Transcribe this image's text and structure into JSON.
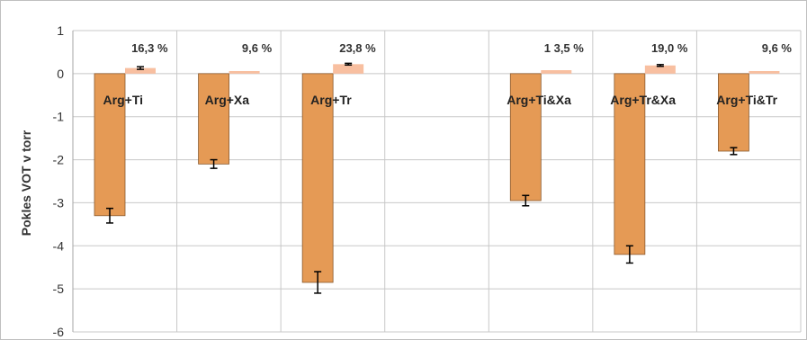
{
  "chart_data": {
    "type": "bar",
    "title": "",
    "xlabel": "",
    "ylabel": "Pokles  VOT v torr",
    "ylim": [
      -6,
      1
    ],
    "yticks": [
      1,
      0,
      -1,
      -2,
      -3,
      -4,
      -5,
      -6
    ],
    "grid": true,
    "categories": [
      "Arg+Ti",
      "Arg+Xa",
      "Arg+Tr",
      "",
      "Arg+Ti&Xa",
      "Arg+Tr&Xa",
      "Arg+Ti&Tr"
    ],
    "series": [
      {
        "values": [
          -3.3,
          -2.1,
          -4.85,
          null,
          -2.95,
          -4.2,
          -1.8
        ],
        "errors": [
          0.17,
          0.1,
          0.25,
          null,
          0.12,
          0.2,
          0.08
        ],
        "color": "#E59A55"
      },
      {
        "values": [
          0.13,
          0.06,
          0.22,
          null,
          0.08,
          0.19,
          0.06
        ],
        "errors": [
          0.03,
          null,
          0.02,
          null,
          null,
          0.02,
          null
        ],
        "color": "#F8BFA0"
      }
    ],
    "annotations": [
      "16,3 %",
      "9,6 %",
      "23,8 %",
      "",
      "1 3,5 %",
      "19,0 %",
      "9,6 %"
    ]
  }
}
